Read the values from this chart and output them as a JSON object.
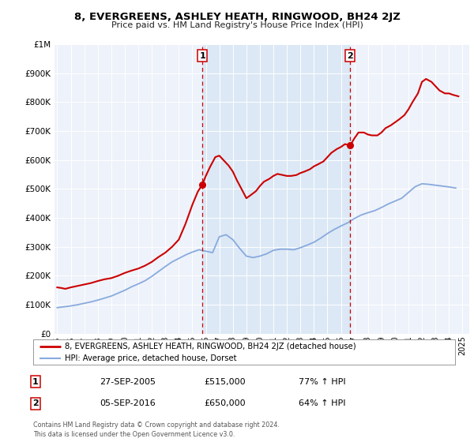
{
  "title": "8, EVERGREENS, ASHLEY HEATH, RINGWOOD, BH24 2JZ",
  "subtitle": "Price paid vs. HM Land Registry's House Price Index (HPI)",
  "legend_line1": "8, EVERGREENS, ASHLEY HEATH, RINGWOOD, BH24 2JZ (detached house)",
  "legend_line2": "HPI: Average price, detached house, Dorset",
  "footnote": "Contains HM Land Registry data © Crown copyright and database right 2024.\nThis data is licensed under the Open Government Licence v3.0.",
  "sale1_date": "27-SEP-2005",
  "sale1_price": "£515,000",
  "sale1_hpi": "77% ↑ HPI",
  "sale1_x": 2005.74,
  "sale1_y": 515000,
  "sale2_date": "05-SEP-2016",
  "sale2_price": "£650,000",
  "sale2_hpi": "64% ↑ HPI",
  "sale2_x": 2016.68,
  "sale2_y": 650000,
  "red_color": "#cc0000",
  "blue_color": "#88aadd",
  "vline_color": "#cc0000",
  "bg_plot": "#eef2fa",
  "bg_highlight": "#dce8f5",
  "ylim": [
    0,
    1000000
  ],
  "xlim_start": 1994.8,
  "xlim_end": 2025.5,
  "yticks": [
    0,
    100000,
    200000,
    300000,
    400000,
    500000,
    600000,
    700000,
    800000,
    900000,
    1000000
  ],
  "ytick_labels": [
    "£0",
    "£100K",
    "£200K",
    "£300K",
    "£400K",
    "£500K",
    "£600K",
    "£700K",
    "£800K",
    "£900K",
    "£1M"
  ],
  "xticks": [
    1995,
    1996,
    1997,
    1998,
    1999,
    2000,
    2001,
    2002,
    2003,
    2004,
    2005,
    2006,
    2007,
    2008,
    2009,
    2010,
    2011,
    2012,
    2013,
    2014,
    2015,
    2016,
    2017,
    2018,
    2019,
    2020,
    2021,
    2022,
    2023,
    2024,
    2025
  ],
  "red_x": [
    1995.0,
    1995.3,
    1995.6,
    1996.0,
    1996.5,
    1997.0,
    1997.5,
    1998.0,
    1998.5,
    1999.0,
    1999.5,
    2000.0,
    2000.5,
    2001.0,
    2001.5,
    2002.0,
    2002.5,
    2003.0,
    2003.5,
    2004.0,
    2004.5,
    2005.0,
    2005.4,
    2005.74,
    2006.0,
    2006.3,
    2006.7,
    2007.0,
    2007.3,
    2007.7,
    2008.0,
    2008.3,
    2008.7,
    2009.0,
    2009.3,
    2009.7,
    2010.0,
    2010.3,
    2010.7,
    2011.0,
    2011.3,
    2011.7,
    2012.0,
    2012.3,
    2012.7,
    2013.0,
    2013.3,
    2013.7,
    2014.0,
    2014.3,
    2014.7,
    2015.0,
    2015.3,
    2015.7,
    2016.0,
    2016.3,
    2016.68,
    2017.0,
    2017.3,
    2017.7,
    2018.0,
    2018.3,
    2018.7,
    2019.0,
    2019.3,
    2019.7,
    2020.0,
    2020.3,
    2020.7,
    2021.0,
    2021.3,
    2021.7,
    2022.0,
    2022.3,
    2022.7,
    2023.0,
    2023.3,
    2023.7,
    2024.0,
    2024.3,
    2024.7
  ],
  "red_y": [
    160000,
    158000,
    155000,
    160000,
    165000,
    170000,
    175000,
    182000,
    188000,
    192000,
    200000,
    210000,
    218000,
    225000,
    235000,
    248000,
    265000,
    280000,
    300000,
    325000,
    380000,
    445000,
    490000,
    515000,
    545000,
    575000,
    610000,
    615000,
    600000,
    580000,
    560000,
    530000,
    495000,
    468000,
    478000,
    492000,
    510000,
    525000,
    535000,
    545000,
    552000,
    548000,
    545000,
    545000,
    548000,
    555000,
    560000,
    568000,
    578000,
    585000,
    595000,
    610000,
    625000,
    638000,
    645000,
    655000,
    650000,
    675000,
    695000,
    695000,
    688000,
    685000,
    685000,
    695000,
    710000,
    720000,
    730000,
    740000,
    755000,
    775000,
    800000,
    830000,
    870000,
    880000,
    870000,
    855000,
    840000,
    830000,
    830000,
    825000,
    820000
  ],
  "blue_x": [
    1995.0,
    1995.5,
    1996.0,
    1996.5,
    1997.0,
    1997.5,
    1998.0,
    1998.5,
    1999.0,
    1999.5,
    2000.0,
    2000.5,
    2001.0,
    2001.5,
    2002.0,
    2002.5,
    2003.0,
    2003.5,
    2004.0,
    2004.5,
    2005.0,
    2005.5,
    2006.0,
    2006.5,
    2007.0,
    2007.5,
    2008.0,
    2008.5,
    2009.0,
    2009.5,
    2010.0,
    2010.5,
    2011.0,
    2011.5,
    2012.0,
    2012.5,
    2013.0,
    2013.5,
    2014.0,
    2014.5,
    2015.0,
    2015.5,
    2016.0,
    2016.5,
    2017.0,
    2017.5,
    2018.0,
    2018.5,
    2019.0,
    2019.5,
    2020.0,
    2020.5,
    2021.0,
    2021.5,
    2022.0,
    2022.5,
    2023.0,
    2023.5,
    2024.0,
    2024.5
  ],
  "blue_y": [
    90000,
    93000,
    96000,
    100000,
    105000,
    110000,
    116000,
    123000,
    130000,
    140000,
    150000,
    162000,
    172000,
    183000,
    198000,
    215000,
    232000,
    248000,
    260000,
    272000,
    282000,
    290000,
    285000,
    280000,
    335000,
    342000,
    325000,
    295000,
    268000,
    263000,
    268000,
    276000,
    288000,
    292000,
    292000,
    290000,
    297000,
    306000,
    316000,
    330000,
    346000,
    360000,
    372000,
    383000,
    398000,
    410000,
    418000,
    425000,
    436000,
    448000,
    458000,
    468000,
    488000,
    508000,
    518000,
    516000,
    513000,
    510000,
    507000,
    503000
  ]
}
